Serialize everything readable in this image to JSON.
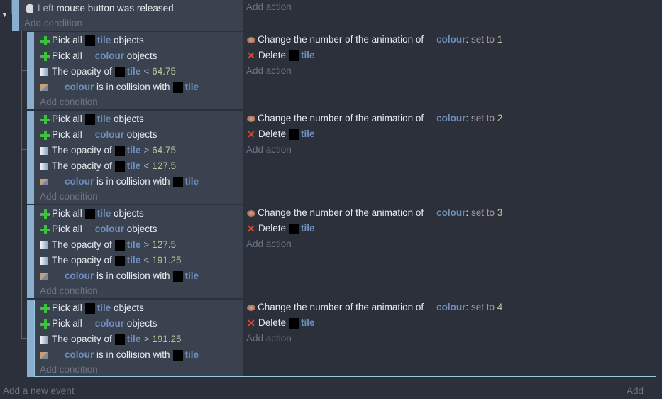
{
  "top_event": {
    "condition": {
      "button": "Left",
      "text": "mouse button was released"
    },
    "add_condition": "Add condition",
    "add_action": "Add action"
  },
  "sub_events": [
    {
      "conditions": [
        [
          {
            "k": "icon",
            "v": "plus"
          },
          {
            "k": "t",
            "v": "Pick all"
          },
          {
            "k": "box"
          },
          {
            "k": "obj",
            "v": "tile"
          },
          {
            "k": "t",
            "v": " objects"
          }
        ],
        [
          {
            "k": "icon",
            "v": "plus"
          },
          {
            "k": "t",
            "v": "Pick all"
          },
          {
            "k": "gap"
          },
          {
            "k": "obj",
            "v": "colour"
          },
          {
            "k": "t",
            "v": " objects"
          }
        ],
        [
          {
            "k": "icon",
            "v": "opac"
          },
          {
            "k": "t",
            "v": "The opacity of"
          },
          {
            "k": "box"
          },
          {
            "k": "obj",
            "v": "tile"
          },
          {
            "k": "op",
            "v": "<"
          },
          {
            "k": "val",
            "v": "64.75"
          }
        ],
        [
          {
            "k": "icon",
            "v": "coll"
          },
          {
            "k": "gap"
          },
          {
            "k": "obj",
            "v": "colour"
          },
          {
            "k": "t",
            "v": " is in collision with"
          },
          {
            "k": "box"
          },
          {
            "k": "obj",
            "v": "tile"
          }
        ]
      ],
      "actions": [
        [
          {
            "k": "icon",
            "v": "anim"
          },
          {
            "k": "t",
            "v": "Change the number of the animation of"
          },
          {
            "k": "gap"
          },
          {
            "k": "obj",
            "v": "colour"
          },
          {
            "k": "t",
            "v": ":"
          },
          {
            "k": "setto",
            "v": " set to "
          },
          {
            "k": "val",
            "v": "1"
          }
        ],
        [
          {
            "k": "icon",
            "v": "del"
          },
          {
            "k": "t",
            "v": "Delete"
          },
          {
            "k": "box"
          },
          {
            "k": "obj",
            "v": "tile"
          }
        ]
      ]
    },
    {
      "conditions": [
        [
          {
            "k": "icon",
            "v": "plus"
          },
          {
            "k": "t",
            "v": "Pick all"
          },
          {
            "k": "box"
          },
          {
            "k": "obj",
            "v": "tile"
          },
          {
            "k": "t",
            "v": " objects"
          }
        ],
        [
          {
            "k": "icon",
            "v": "plus"
          },
          {
            "k": "t",
            "v": "Pick all"
          },
          {
            "k": "gap"
          },
          {
            "k": "obj",
            "v": "colour"
          },
          {
            "k": "t",
            "v": " objects"
          }
        ],
        [
          {
            "k": "icon",
            "v": "opac"
          },
          {
            "k": "t",
            "v": "The opacity of"
          },
          {
            "k": "box"
          },
          {
            "k": "obj",
            "v": "tile"
          },
          {
            "k": "op",
            "v": ">"
          },
          {
            "k": "val",
            "v": "64.75"
          }
        ],
        [
          {
            "k": "icon",
            "v": "opac"
          },
          {
            "k": "t",
            "v": "The opacity of"
          },
          {
            "k": "box"
          },
          {
            "k": "obj",
            "v": "tile"
          },
          {
            "k": "op",
            "v": "<"
          },
          {
            "k": "val",
            "v": "127.5"
          }
        ],
        [
          {
            "k": "icon",
            "v": "coll"
          },
          {
            "k": "gap"
          },
          {
            "k": "obj",
            "v": "colour"
          },
          {
            "k": "t",
            "v": " is in collision with"
          },
          {
            "k": "box"
          },
          {
            "k": "obj",
            "v": "tile"
          }
        ]
      ],
      "actions": [
        [
          {
            "k": "icon",
            "v": "anim"
          },
          {
            "k": "t",
            "v": "Change the number of the animation of"
          },
          {
            "k": "gap"
          },
          {
            "k": "obj",
            "v": "colour"
          },
          {
            "k": "t",
            "v": ":"
          },
          {
            "k": "setto",
            "v": " set to "
          },
          {
            "k": "val",
            "v": "2"
          }
        ],
        [
          {
            "k": "icon",
            "v": "del"
          },
          {
            "k": "t",
            "v": "Delete"
          },
          {
            "k": "box"
          },
          {
            "k": "obj",
            "v": "tile"
          }
        ]
      ]
    },
    {
      "conditions": [
        [
          {
            "k": "icon",
            "v": "plus"
          },
          {
            "k": "t",
            "v": "Pick all"
          },
          {
            "k": "box"
          },
          {
            "k": "obj",
            "v": "tile"
          },
          {
            "k": "t",
            "v": " objects"
          }
        ],
        [
          {
            "k": "icon",
            "v": "plus"
          },
          {
            "k": "t",
            "v": "Pick all"
          },
          {
            "k": "gap"
          },
          {
            "k": "obj",
            "v": "colour"
          },
          {
            "k": "t",
            "v": " objects"
          }
        ],
        [
          {
            "k": "icon",
            "v": "opac"
          },
          {
            "k": "t",
            "v": "The opacity of"
          },
          {
            "k": "box"
          },
          {
            "k": "obj",
            "v": "tile"
          },
          {
            "k": "op",
            "v": ">"
          },
          {
            "k": "val",
            "v": "127.5"
          }
        ],
        [
          {
            "k": "icon",
            "v": "opac"
          },
          {
            "k": "t",
            "v": "The opacity of"
          },
          {
            "k": "box"
          },
          {
            "k": "obj",
            "v": "tile"
          },
          {
            "k": "op",
            "v": "<"
          },
          {
            "k": "val",
            "v": "191.25"
          }
        ],
        [
          {
            "k": "icon",
            "v": "coll"
          },
          {
            "k": "gap"
          },
          {
            "k": "obj",
            "v": "colour"
          },
          {
            "k": "t",
            "v": " is in collision with"
          },
          {
            "k": "box"
          },
          {
            "k": "obj",
            "v": "tile"
          }
        ]
      ],
      "actions": [
        [
          {
            "k": "icon",
            "v": "anim"
          },
          {
            "k": "t",
            "v": "Change the number of the animation of"
          },
          {
            "k": "gap"
          },
          {
            "k": "obj",
            "v": "colour"
          },
          {
            "k": "t",
            "v": ":"
          },
          {
            "k": "setto",
            "v": " set to "
          },
          {
            "k": "val",
            "v": "3"
          }
        ],
        [
          {
            "k": "icon",
            "v": "del"
          },
          {
            "k": "t",
            "v": "Delete"
          },
          {
            "k": "box"
          },
          {
            "k": "obj",
            "v": "tile"
          }
        ]
      ]
    },
    {
      "selected": true,
      "conditions": [
        [
          {
            "k": "icon",
            "v": "plus"
          },
          {
            "k": "t",
            "v": "Pick all"
          },
          {
            "k": "box"
          },
          {
            "k": "obj",
            "v": "tile"
          },
          {
            "k": "t",
            "v": " objects"
          }
        ],
        [
          {
            "k": "icon",
            "v": "plus"
          },
          {
            "k": "t",
            "v": "Pick all"
          },
          {
            "k": "gap"
          },
          {
            "k": "obj",
            "v": "colour"
          },
          {
            "k": "t",
            "v": " objects"
          }
        ],
        [
          {
            "k": "icon",
            "v": "opac"
          },
          {
            "k": "t",
            "v": "The opacity of"
          },
          {
            "k": "box"
          },
          {
            "k": "obj",
            "v": "tile"
          },
          {
            "k": "op",
            "v": ">"
          },
          {
            "k": "val",
            "v": "191.25"
          }
        ],
        [
          {
            "k": "icon",
            "v": "coll"
          },
          {
            "k": "gap"
          },
          {
            "k": "obj",
            "v": "colour"
          },
          {
            "k": "t",
            "v": " is in collision with"
          },
          {
            "k": "box"
          },
          {
            "k": "obj",
            "v": "tile"
          }
        ]
      ],
      "actions": [
        [
          {
            "k": "icon",
            "v": "anim"
          },
          {
            "k": "t",
            "v": "Change the number of the animation of"
          },
          {
            "k": "gap"
          },
          {
            "k": "obj",
            "v": "colour"
          },
          {
            "k": "t",
            "v": ":"
          },
          {
            "k": "setto",
            "v": " set to "
          },
          {
            "k": "val",
            "v": "4"
          }
        ],
        [
          {
            "k": "icon",
            "v": "del"
          },
          {
            "k": "t",
            "v": "Delete"
          },
          {
            "k": "box"
          },
          {
            "k": "obj",
            "v": "tile"
          }
        ]
      ]
    }
  ],
  "labels": {
    "add_condition": "Add condition",
    "add_action": "Add action"
  },
  "footer": {
    "add_event": "Add a new event",
    "add": "Add"
  }
}
